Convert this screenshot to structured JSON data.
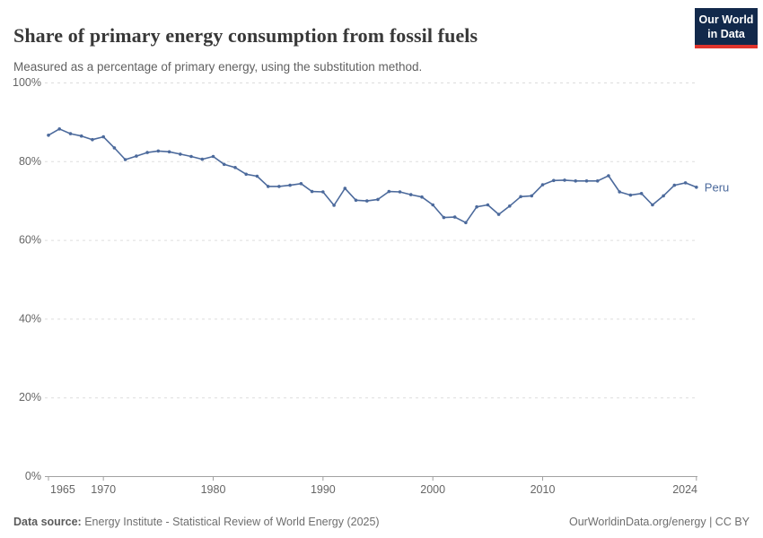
{
  "header": {
    "title": "Share of primary energy consumption from fossil fuels",
    "subtitle": "Measured as a percentage of primary energy, using the substitution method.",
    "logo": {
      "line1": "Our World",
      "line2": "in Data"
    }
  },
  "colors": {
    "line": "#4C6A9C",
    "logo_bg": "#12294B",
    "logo_stripe": "#E0342C",
    "grid": "#dddddd",
    "axis": "#a1a1a1",
    "tick_text": "#666666"
  },
  "chart_data": {
    "type": "line",
    "title": "Share of primary energy consumption from fossil fuels",
    "series_name": "Peru",
    "x": [
      1965,
      1966,
      1967,
      1968,
      1969,
      1970,
      1971,
      1972,
      1973,
      1974,
      1975,
      1976,
      1977,
      1978,
      1979,
      1980,
      1981,
      1982,
      1983,
      1984,
      1985,
      1986,
      1987,
      1988,
      1989,
      1990,
      1991,
      1992,
      1993,
      1994,
      1995,
      1996,
      1997,
      1998,
      1999,
      2000,
      2001,
      2002,
      2003,
      2004,
      2005,
      2006,
      2007,
      2008,
      2009,
      2010,
      2011,
      2012,
      2013,
      2014,
      2015,
      2016,
      2017,
      2018,
      2019,
      2020,
      2021,
      2022,
      2023,
      2024
    ],
    "values": [
      86.6,
      88.2,
      87.0,
      86.4,
      85.5,
      86.2,
      83.4,
      80.4,
      81.3,
      82.2,
      82.6,
      82.4,
      81.8,
      81.2,
      80.5,
      81.2,
      79.2,
      78.4,
      76.7,
      76.2,
      73.6,
      73.6,
      73.9,
      74.3,
      72.3,
      72.2,
      68.8,
      73.1,
      70.1,
      69.9,
      70.3,
      72.3,
      72.2,
      71.5,
      70.9,
      68.9,
      65.7,
      65.8,
      64.4,
      68.4,
      68.9,
      66.5,
      68.6,
      71.0,
      71.2,
      74.0,
      75.1,
      75.2,
      75.0,
      75.0,
      75.0,
      76.3,
      72.2,
      71.4,
      71.8,
      68.9,
      71.2,
      73.9,
      74.5,
      73.4
    ],
    "ylim": [
      0,
      100
    ],
    "yticks": [
      0,
      20,
      40,
      60,
      80,
      100
    ],
    "ytick_suffix": "%",
    "xticks": [
      1965,
      1970,
      1980,
      1990,
      2000,
      2010,
      2024
    ],
    "grid": "horizontal-dashed",
    "legend_position": "end-of-line-label",
    "line_color": "#4C6A9C"
  },
  "footer": {
    "source_label": "Data source:",
    "source_text": " Energy Institute - Statistical Review of World Energy (2025)",
    "credit": "OurWorldinData.org/energy | CC BY"
  }
}
